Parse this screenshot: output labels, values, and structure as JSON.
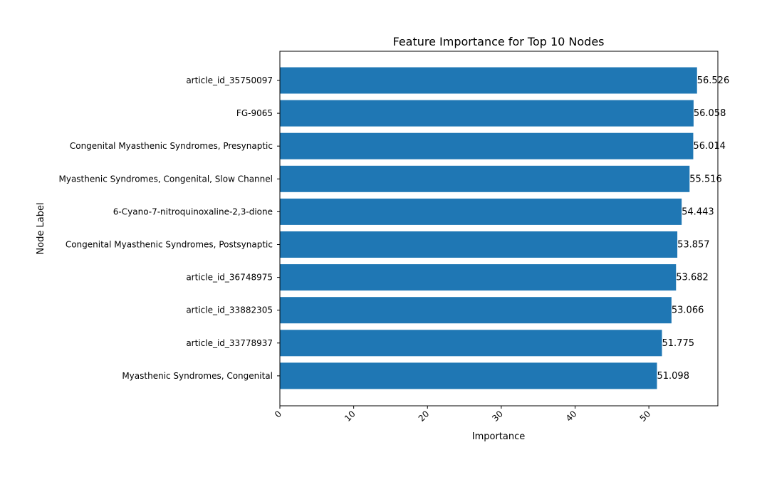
{
  "chart_data": {
    "type": "bar",
    "orientation": "horizontal",
    "title": "Feature Importance for Top 10 Nodes",
    "xlabel": "Importance",
    "ylabel": "Node Label",
    "xlim": [
      0,
      59.35
    ],
    "xticks": [
      "0",
      "10",
      "20",
      "30",
      "40",
      "50"
    ],
    "bar_color": "#1f77b4",
    "grid": false,
    "categories": [
      "article_id_35750097",
      "FG-9065",
      "Congenital Myasthenic Syndromes, Presynaptic",
      "Myasthenic Syndromes, Congenital, Slow Channel",
      "6-Cyano-7-nitroquinoxaline-2,3-dione",
      "Congenital Myasthenic Syndromes, Postsynaptic",
      "article_id_36748975",
      "article_id_33882305",
      "article_id_33778937",
      "Myasthenic Syndromes, Congenital"
    ],
    "values": [
      56.526,
      56.058,
      56.014,
      55.516,
      54.443,
      53.857,
      53.682,
      53.066,
      51.775,
      51.098
    ],
    "value_labels": [
      "56.526",
      "56.058",
      "56.014",
      "55.516",
      "54.443",
      "53.857",
      "53.682",
      "53.066",
      "51.775",
      "51.098"
    ]
  }
}
